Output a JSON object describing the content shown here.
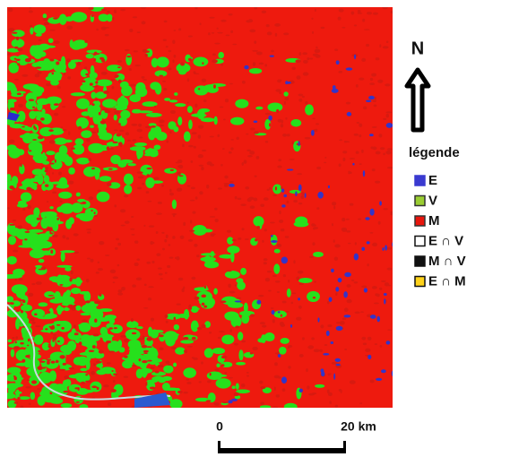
{
  "north": "N",
  "legend": {
    "title": "légende",
    "items": [
      {
        "label": "E",
        "color": "#3a3ad0",
        "edge": "#3a3ad0"
      },
      {
        "label": "V",
        "color": "#9acd32",
        "edge": "#333333"
      },
      {
        "label": "M",
        "color": "#e8160c",
        "edge": "#333333"
      },
      {
        "label": "E ∩ V",
        "color": "#ffffff",
        "edge": "#111111"
      },
      {
        "label": "M ∩ V",
        "color": "#111111",
        "edge": "#111111"
      },
      {
        "label": "E ∩ M",
        "color": "#ffd21a",
        "edge": "#111111"
      }
    ]
  },
  "scale_bar": {
    "start": "0",
    "end": "20 km"
  }
}
